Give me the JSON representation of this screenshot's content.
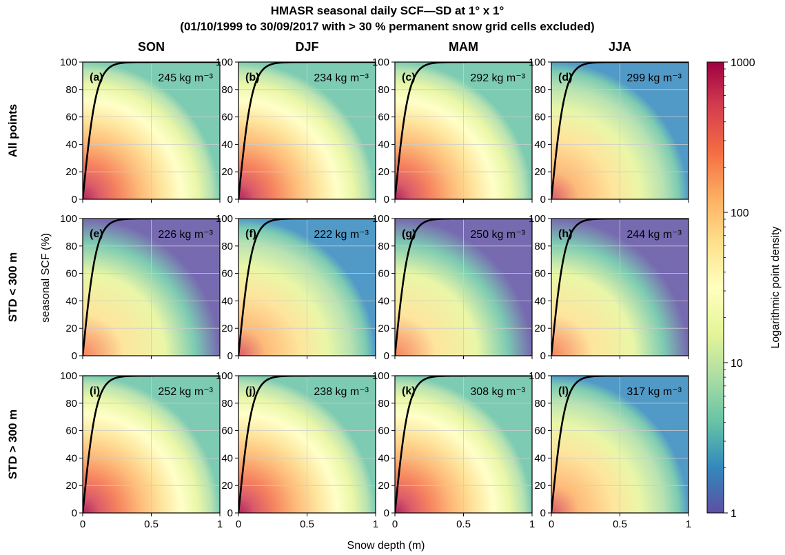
{
  "chart_data": {
    "type": "heatmap",
    "title": "HMASR seasonal daily SCF—SD at 1° x 1°",
    "subtitle": "(01/10/1999 to 30/09/2017 with > 30 % permanent snow grid cells excluded)",
    "xlabel": "Snow depth (m)",
    "ylabel": "seasonal SCF (%)",
    "xlim": [
      0,
      1
    ],
    "ylim": [
      0,
      100
    ],
    "xticks": [
      "0",
      "0.5",
      "1"
    ],
    "yticks": [
      "0",
      "20",
      "40",
      "60",
      "80",
      "100"
    ],
    "grid": true,
    "columns": [
      "SON",
      "DJF",
      "MAM",
      "JJA"
    ],
    "rows": [
      "All points",
      "STD < 300 m",
      "STD > 300 m"
    ],
    "density_unit": "kg m⁻³",
    "panels": [
      {
        "label": "(a)",
        "season": "SON",
        "group": "All points",
        "density": 245
      },
      {
        "label": "(b)",
        "season": "DJF",
        "group": "All points",
        "density": 234
      },
      {
        "label": "(c)",
        "season": "MAM",
        "group": "All points",
        "density": 292
      },
      {
        "label": "(d)",
        "season": "JJA",
        "group": "All points",
        "density": 299
      },
      {
        "label": "(e)",
        "season": "SON",
        "group": "STD < 300 m",
        "density": 226
      },
      {
        "label": "(f)",
        "season": "DJF",
        "group": "STD < 300 m",
        "density": 222
      },
      {
        "label": "(g)",
        "season": "MAM",
        "group": "STD < 300 m",
        "density": 250
      },
      {
        "label": "(h)",
        "season": "JJA",
        "group": "STD < 300 m",
        "density": 244
      },
      {
        "label": "(i)",
        "season": "SON",
        "group": "STD > 300 m",
        "density": 252
      },
      {
        "label": "(j)",
        "season": "DJF",
        "group": "STD > 300 m",
        "density": 238
      },
      {
        "label": "(k)",
        "season": "MAM",
        "group": "STD > 300 m",
        "density": 308
      },
      {
        "label": "(l)",
        "season": "JJA",
        "group": "STD > 300 m",
        "density": 317
      }
    ],
    "colorbar": {
      "label": "Logarithmic point density",
      "scale": "log",
      "ticks": [
        "1",
        "10",
        "100",
        "1000"
      ],
      "colormap": "Spectral_r",
      "colors": [
        "#5e4fa2",
        "#3288bd",
        "#66c2a5",
        "#abdda4",
        "#e6f598",
        "#ffffbf",
        "#fee08b",
        "#fdae61",
        "#f46d43",
        "#d53e4f",
        "#9e0142"
      ]
    }
  }
}
